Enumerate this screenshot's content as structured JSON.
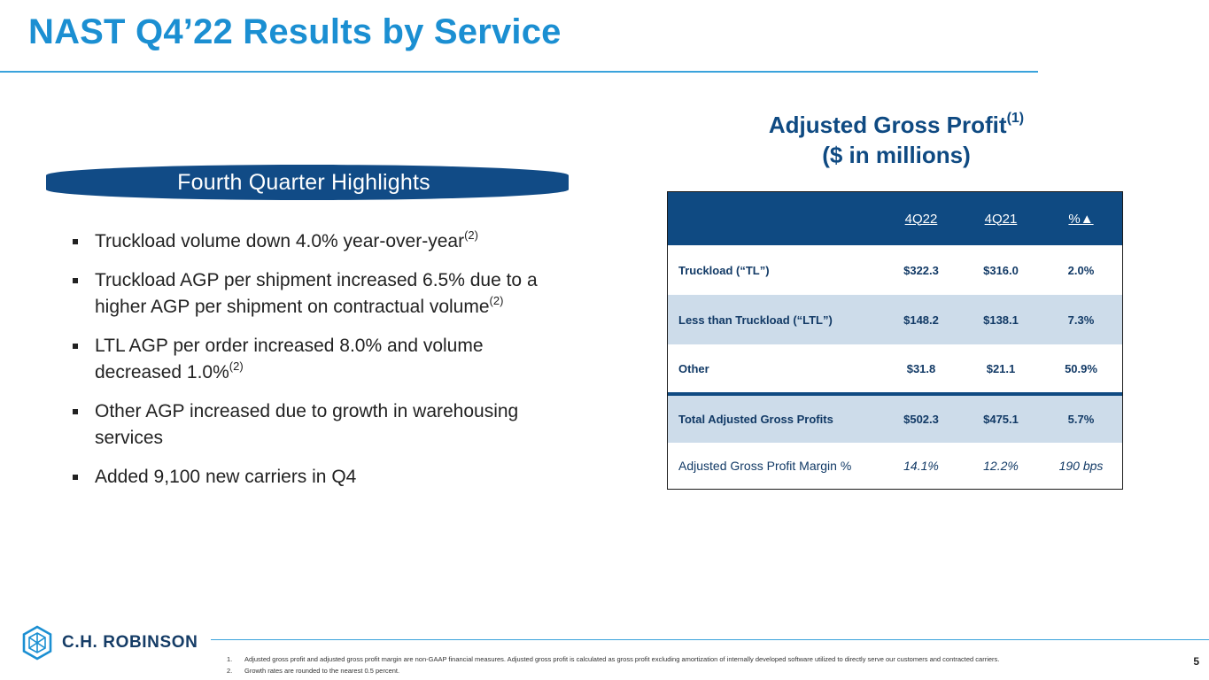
{
  "slide": {
    "title": "NAST Q4’22 Results by Service",
    "page_number": "5"
  },
  "highlights": {
    "banner": "Fourth Quarter Highlights",
    "bullets": [
      {
        "text": "Truckload volume down 4.0% year-over-year",
        "note": "(2)"
      },
      {
        "text": "Truckload AGP per shipment increased 6.5% due to a higher AGP per shipment on contractual volume",
        "note": "(2)"
      },
      {
        "text": "LTL AGP per order increased 8.0% and volume decreased 1.0%",
        "note": "(2)"
      },
      {
        "text": "Other AGP increased due to growth in warehousing services",
        "note": ""
      },
      {
        "text": "Added 9,100 new carriers in Q4",
        "note": ""
      }
    ]
  },
  "table": {
    "title_line1": "Adjusted Gross Profit",
    "title_note": "(1)",
    "title_line2": "($ in millions)",
    "headers": [
      "4Q22",
      "4Q21",
      "%▲"
    ],
    "rows": [
      {
        "label": "Truckload (“TL”)",
        "q4_22": "$322.3",
        "q4_21": "$316.0",
        "change": "2.0%"
      },
      {
        "label": "Less than Truckload (“LTL”)",
        "q4_22": "$148.2",
        "q4_21": "$138.1",
        "change": "7.3%"
      },
      {
        "label": "Other",
        "q4_22": "$31.8",
        "q4_21": "$21.1",
        "change": "50.9%"
      },
      {
        "label": "Total Adjusted Gross Profits",
        "q4_22": "$502.3",
        "q4_21": "$475.1",
        "change": "5.7%"
      },
      {
        "label": "Adjusted Gross Profit Margin %",
        "q4_22": "14.1%",
        "q4_21": "12.2%",
        "change": "190 bps"
      }
    ]
  },
  "footer": {
    "logo_text": "C.H. ROBINSON",
    "notes": [
      {
        "num": "1.",
        "text": "Adjusted gross profit and adjusted gross profit margin are non-GAAP financial measures. Adjusted gross profit is calculated as gross profit excluding amortization of internally developed software utilized to directly serve our customers and contracted carriers."
      },
      {
        "num": "2.",
        "text": "Growth rates are rounded to the nearest 0.5 percent."
      }
    ]
  },
  "colors": {
    "title_blue": "#1b8fd2",
    "navy": "#0f4a82",
    "row_shade": "#cddcea"
  }
}
